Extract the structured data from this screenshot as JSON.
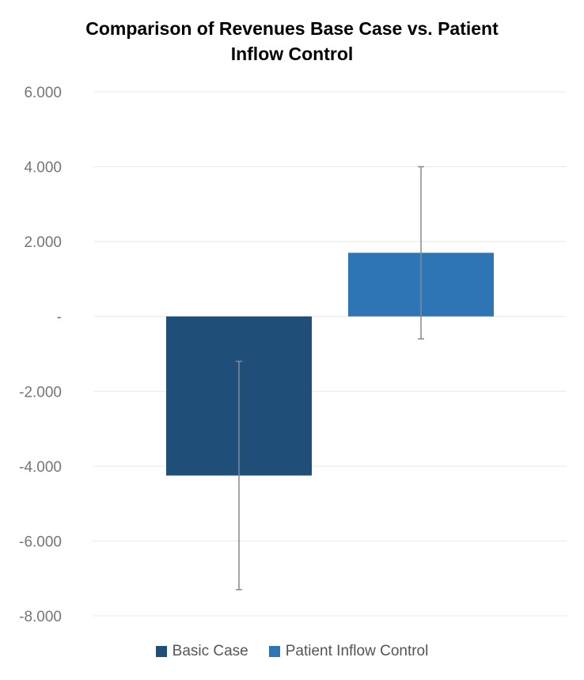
{
  "chart_data": {
    "type": "bar",
    "title_lines": [
      "Comparison of Revenues Base Case vs. Patient",
      "Inflow Control"
    ],
    "xlabel": "",
    "ylabel": "",
    "ylim": [
      -8000,
      6000
    ],
    "yticks": [
      6000,
      4000,
      2000,
      0,
      -2000,
      -4000,
      -6000,
      -8000
    ],
    "ytick_labels": [
      "6.000",
      "4.000",
      "2.000",
      "-",
      "-2.000",
      "-4.000",
      "-6.000",
      "-8.000"
    ],
    "grid": true,
    "legend_position": "bottom",
    "categories": [
      ""
    ],
    "series": [
      {
        "name": "Basic Case",
        "values": [
          -4250
        ],
        "error_low": [
          -7300
        ],
        "error_high": [
          -1200
        ],
        "color": "#1F4E79"
      },
      {
        "name": "Patient Inflow Control",
        "values": [
          1700
        ],
        "error_low": [
          -600
        ],
        "error_high": [
          4000
        ],
        "color": "#2E75B6"
      }
    ]
  }
}
